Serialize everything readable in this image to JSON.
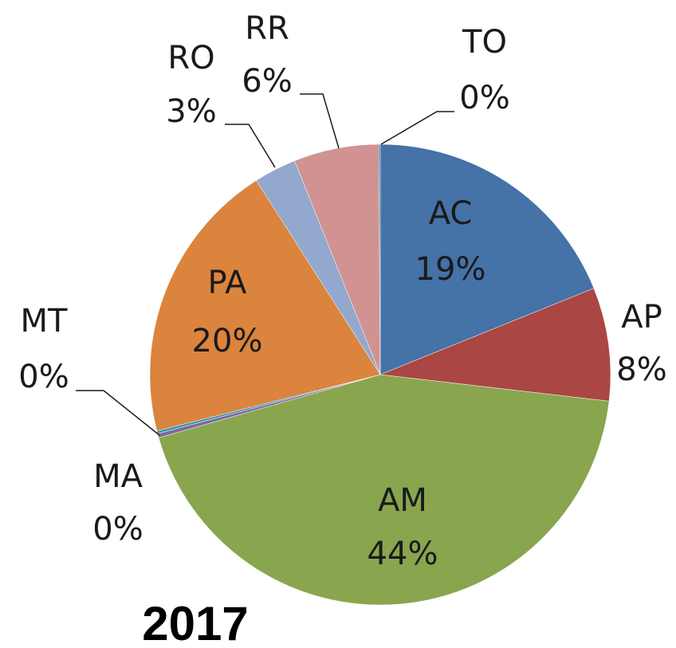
{
  "chart_data": {
    "type": "pie",
    "title": "2017",
    "categories": [
      "AC",
      "AP",
      "AM",
      "MA",
      "MT",
      "PA",
      "RO",
      "RR",
      "TO"
    ],
    "values": [
      19,
      8,
      44,
      0.3,
      0.2,
      20,
      3,
      6,
      0.1
    ],
    "value_labels": [
      "19%",
      "8%",
      "44%",
      "0%",
      "0%",
      "20%",
      "3%",
      "6%",
      "0%"
    ],
    "colors": [
      "#4572a7",
      "#aa4643",
      "#89a54e",
      "#80699b",
      "#3d96ae",
      "#db843d",
      "#92a8cd",
      "#d09391",
      "#4572a7"
    ]
  }
}
